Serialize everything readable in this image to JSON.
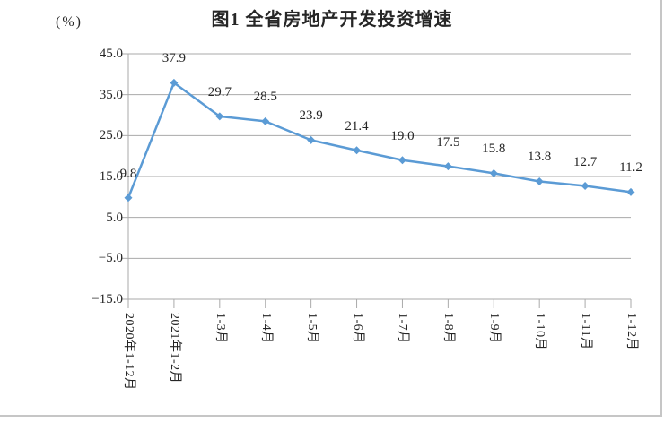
{
  "page": {
    "background_color": "#ffffff",
    "border_color": "#c6c6c6"
  },
  "chart": {
    "title": "图1 全省房地产开发投资增速",
    "unit_label": "(%)"
  },
  "chart_data": {
    "type": "line",
    "title": "图1 全省房地产开发投资增速",
    "xlabel": "",
    "ylabel": "(%)",
    "categories": [
      "2020年1-12月",
      "2021年1-2月",
      "1-3月",
      "1-4月",
      "1-5月",
      "1-6月",
      "1-7月",
      "1-8月",
      "1-9月",
      "1-10月",
      "1-11月",
      "1-12月"
    ],
    "values": [
      9.8,
      37.9,
      29.7,
      28.5,
      23.9,
      21.4,
      19.0,
      17.5,
      15.8,
      13.8,
      12.7,
      11.2
    ],
    "point_labels": [
      "9.8",
      "37.9",
      "29.7",
      "28.5",
      "23.9",
      "21.4",
      "19.0",
      "17.5",
      "15.8",
      "13.8",
      "12.7",
      "11.2"
    ],
    "y_tick_labels": [
      "45.0",
      "35.0",
      "25.0",
      "15.0",
      "5.0",
      "−5.0",
      "−15.0"
    ],
    "ylim": [
      -15,
      45
    ],
    "grid": true,
    "legend": false,
    "marker": "diamond",
    "line_color": "#5b9bd5",
    "grid_color": "#aaaaaa",
    "text_color": "#262626"
  }
}
